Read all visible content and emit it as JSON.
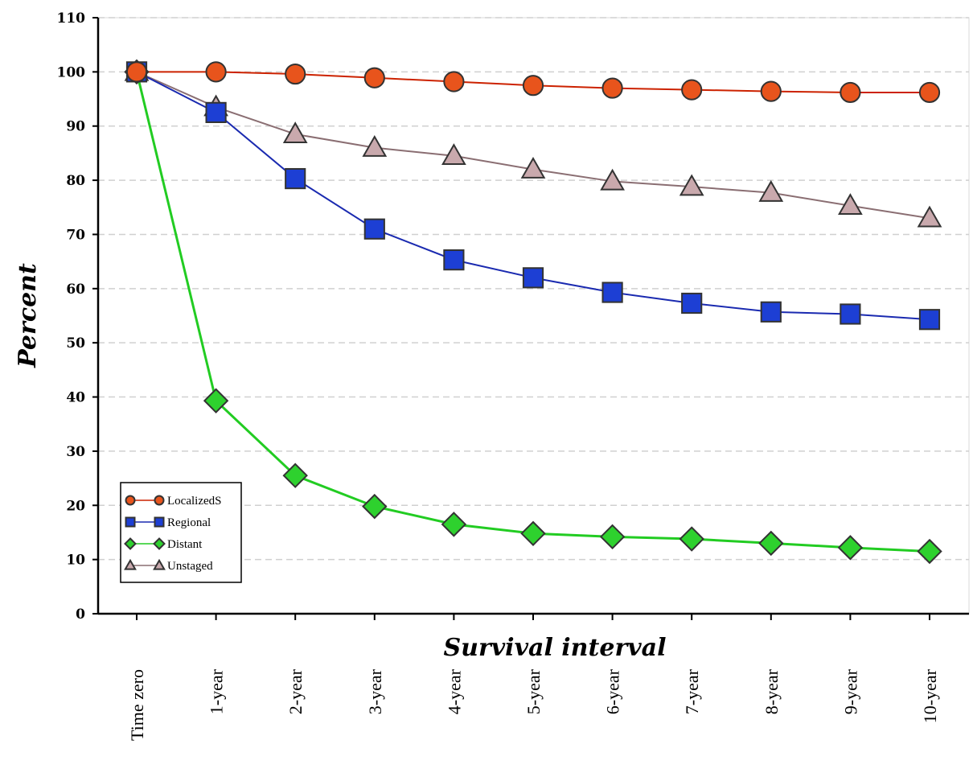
{
  "chart_data": {
    "type": "line",
    "title": "",
    "xlabel": "Survival interval",
    "ylabel": "Percent",
    "ylim": [
      0,
      110
    ],
    "yticks": [
      0,
      10,
      20,
      30,
      40,
      50,
      60,
      70,
      80,
      90,
      100,
      110
    ],
    "grid": "horizontal dashed",
    "legend_position": "bottom-left",
    "categories": [
      "Time zero",
      "1-year",
      "2-year",
      "3-year",
      "4-year",
      "5-year",
      "6-year",
      "7-year",
      "8-year",
      "9-year",
      "10-year"
    ],
    "series": [
      {
        "name": "LocalizedS",
        "marker": "circle",
        "color": "#cc2200",
        "fill": "#e8541c",
        "values": [
          100,
          100,
          99.6,
          98.9,
          98.2,
          97.5,
          97.0,
          96.7,
          96.4,
          96.2,
          96.2
        ]
      },
      {
        "name": "Regional",
        "marker": "square",
        "color": "#1a2ab0",
        "fill": "#1d3fd4",
        "values": [
          100,
          92.5,
          80.3,
          71.0,
          65.3,
          62.0,
          59.3,
          57.3,
          55.7,
          55.3,
          54.3
        ]
      },
      {
        "name": "Distant",
        "marker": "diamond",
        "color": "#22cc22",
        "fill": "#2ed12e",
        "values": [
          100,
          39.3,
          25.5,
          19.8,
          16.5,
          14.8,
          14.2,
          13.8,
          13.0,
          12.2,
          11.5
        ]
      },
      {
        "name": "Unstaged",
        "marker": "triangle",
        "color": "#8a6e72",
        "fill": "#c9a9ad",
        "values": [
          100,
          93.5,
          88.5,
          86.0,
          84.5,
          82.0,
          79.8,
          78.8,
          77.7,
          75.3,
          73.0
        ]
      }
    ]
  }
}
